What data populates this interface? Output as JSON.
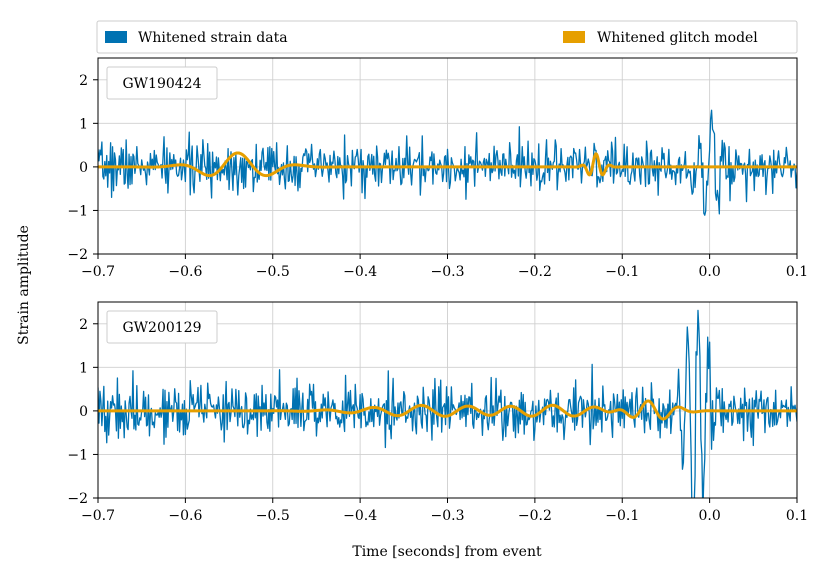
{
  "colors": {
    "strain": "#0072b2",
    "glitch": "#e69f00",
    "grid": "#cfcfcf",
    "frame": "#000000"
  },
  "legend": {
    "items": [
      {
        "label": "Whitened strain data",
        "color": "#0072b2"
      },
      {
        "label": "Whitened glitch model",
        "color": "#e69f00"
      }
    ]
  },
  "axes": {
    "xlabel": "Time [seconds] from event",
    "ylabel": "Strain amplitude"
  },
  "chart_data": [
    {
      "type": "line",
      "event": "GW190424",
      "xlim": [
        -0.7,
        0.1
      ],
      "ylim": [
        -2,
        2.5
      ],
      "xticks": [
        -0.7,
        -0.6,
        -0.5,
        -0.4,
        -0.3,
        -0.2,
        -0.1,
        0.0,
        0.1
      ],
      "xtick_labels": [
        "−0.7",
        "−0.6",
        "−0.5",
        "−0.4",
        "−0.3",
        "−0.2",
        "−0.1",
        "0.0",
        "0.1"
      ],
      "yticks": [
        -2,
        -1,
        0,
        1,
        2
      ],
      "ytick_labels": [
        "−2",
        "−1",
        "0",
        "1",
        "2"
      ],
      "grid": true,
      "series": [
        {
          "name": "Whitened strain data",
          "kind": "noise",
          "noise_sigma": 0.28,
          "seed": 7,
          "bursts": [
            {
              "t": 0.0,
              "amp": 1.2,
              "freq": 70,
              "width": 0.012
            }
          ]
        },
        {
          "name": "Whitened glitch model",
          "kind": "wavelets",
          "wavelets": [
            {
              "t": -0.54,
              "amp": 0.32,
              "freq": 14,
              "width": 0.035
            },
            {
              "t": -0.13,
              "amp": 0.3,
              "freq": 60,
              "width": 0.008
            }
          ]
        }
      ]
    },
    {
      "type": "line",
      "event": "GW200129",
      "xlim": [
        -0.7,
        0.1
      ],
      "ylim": [
        -2,
        2.5
      ],
      "xticks": [
        -0.7,
        -0.6,
        -0.5,
        -0.4,
        -0.3,
        -0.2,
        -0.1,
        0.0,
        0.1
      ],
      "xtick_labels": [
        "−0.7",
        "−0.6",
        "−0.5",
        "−0.4",
        "−0.3",
        "−0.2",
        "−0.1",
        "0.0",
        "0.1"
      ],
      "yticks": [
        -2,
        -1,
        0,
        1,
        2
      ],
      "ytick_labels": [
        "−2",
        "−1",
        "0",
        "1",
        "2"
      ],
      "grid": true,
      "series": [
        {
          "name": "Whitened strain data",
          "kind": "noise",
          "noise_sigma": 0.32,
          "seed": 19,
          "bursts": [
            {
              "t": -0.015,
              "amp": 2.6,
              "freq": 85,
              "width": 0.012
            }
          ]
        },
        {
          "name": "Whitened glitch model",
          "kind": "wavelets",
          "wavelets": [
            {
              "t": -0.33,
              "amp": 0.12,
              "freq": 18,
              "width": 0.06
            },
            {
              "t": -0.18,
              "amp": 0.13,
              "freq": 20,
              "width": 0.06
            },
            {
              "t": -0.07,
              "amp": 0.22,
              "freq": 28,
              "width": 0.025
            }
          ]
        }
      ]
    }
  ]
}
